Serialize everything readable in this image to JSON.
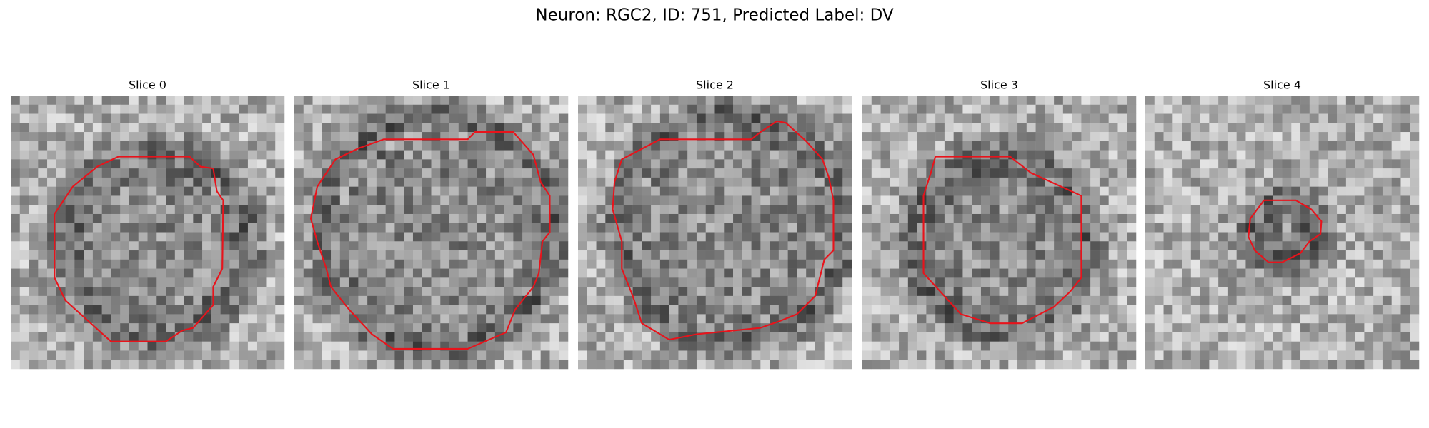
{
  "title": "Neuron: RGC2, ID: 751, Predicted Label: DV",
  "panels": [
    {
      "title": "Slice 0"
    },
    {
      "title": "Slice 1"
    },
    {
      "title": "Slice 2"
    },
    {
      "title": "Slice 3"
    },
    {
      "title": "Slice 4"
    }
  ]
}
